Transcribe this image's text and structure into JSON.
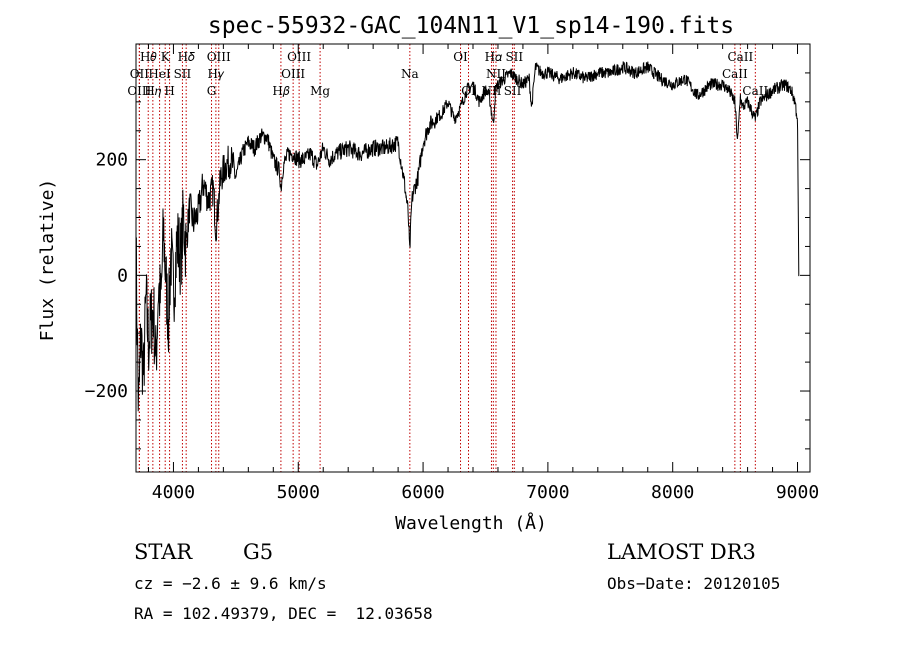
{
  "chart_data": {
    "type": "line",
    "title": "spec-55932-GAC_104N11_V1_sp14-190.fits",
    "xlabel": "Wavelength (Å)",
    "ylabel": "Flux (relative)",
    "xlim": [
      3700,
      9100
    ],
    "ylim": [
      -340,
      400
    ],
    "x_ticks": [
      4000,
      5000,
      6000,
      7000,
      8000,
      9000
    ],
    "y_ticks": [
      -200,
      0,
      200
    ],
    "series": [
      {
        "name": "flux",
        "x": [
          3700,
          3720,
          3740,
          3760,
          3780,
          3800,
          3820,
          3840,
          3860,
          3880,
          3900,
          3920,
          3940,
          3960,
          3980,
          4000,
          4030,
          4060,
          4080,
          4100,
          4130,
          4160,
          4200,
          4240,
          4280,
          4320,
          4340,
          4380,
          4420,
          4460,
          4500,
          4550,
          4600,
          4650,
          4700,
          4750,
          4800,
          4850,
          4861,
          4880,
          4920,
          4960,
          5000,
          5050,
          5100,
          5150,
          5200,
          5250,
          5300,
          5400,
          5500,
          5600,
          5700,
          5800,
          5850,
          5880,
          5893,
          5910,
          5930,
          5960,
          6000,
          6050,
          6100,
          6150,
          6200,
          6250,
          6300,
          6350,
          6400,
          6450,
          6500,
          6530,
          6563,
          6580,
          6600,
          6650,
          6700,
          6750,
          6800,
          6850,
          6870,
          6900,
          6950,
          7000,
          7100,
          7200,
          7300,
          7400,
          7500,
          7600,
          7700,
          7800,
          7900,
          8000,
          8100,
          8200,
          8300,
          8400,
          8450,
          8498,
          8520,
          8542,
          8560,
          8600,
          8662,
          8700,
          8800,
          8900,
          8950,
          8980,
          9000,
          9010
        ],
        "y": [
          50,
          -240,
          -100,
          -180,
          -40,
          -120,
          -80,
          -60,
          -150,
          -20,
          -50,
          80,
          -10,
          -80,
          40,
          -30,
          60,
          30,
          100,
          50,
          120,
          90,
          110,
          160,
          130,
          150,
          80,
          170,
          190,
          200,
          170,
          210,
          230,
          220,
          240,
          240,
          200,
          180,
          150,
          190,
          210,
          210,
          200,
          200,
          210,
          190,
          220,
          200,
          210,
          220,
          210,
          220,
          220,
          230,
          160,
          110,
          40,
          130,
          150,
          170,
          230,
          260,
          270,
          280,
          300,
          270,
          290,
          320,
          330,
          300,
          320,
          310,
          260,
          320,
          330,
          340,
          350,
          340,
          330,
          340,
          290,
          360,
          350,
          350,
          340,
          350,
          340,
          350,
          350,
          360,
          350,
          360,
          340,
          330,
          340,
          310,
          330,
          330,
          320,
          300,
          230,
          310,
          290,
          300,
          270,
          300,
          320,
          330,
          320,
          300,
          270,
          0
        ]
      }
    ],
    "lines": [
      {
        "name": "H𝜃",
        "wavelength": 3798
      },
      {
        "name": "OII",
        "wavelength": 3727
      },
      {
        "name": "OIII",
        "wavelength": 3727
      },
      {
        "name": "H𝜂",
        "wavelength": 3835
      },
      {
        "name": "HeI",
        "wavelength": 3889
      },
      {
        "name": "K",
        "wavelength": 3934
      },
      {
        "name": "H",
        "wavelength": 3969
      },
      {
        "name": "SII",
        "wavelength": 4072
      },
      {
        "name": "H𝛿",
        "wavelength": 4102
      },
      {
        "name": "H𝛾",
        "wavelength": 4340
      },
      {
        "name": "G",
        "wavelength": 4305
      },
      {
        "name": "OIII",
        "wavelength": 4363
      },
      {
        "name": "H𝛽",
        "wavelength": 4861
      },
      {
        "name": "OIII",
        "wavelength": 4959
      },
      {
        "name": "OIII",
        "wavelength": 5007
      },
      {
        "name": "Mg",
        "wavelength": 5175
      },
      {
        "name": "Na",
        "wavelength": 5894
      },
      {
        "name": "OI",
        "wavelength": 6300
      },
      {
        "name": "OI",
        "wavelength": 6364
      },
      {
        "name": "NII",
        "wavelength": 6548
      },
      {
        "name": "H𝛼",
        "wavelength": 6563
      },
      {
        "name": "NII",
        "wavelength": 6584
      },
      {
        "name": "SII",
        "wavelength": 6717
      },
      {
        "name": "SII",
        "wavelength": 6731
      },
      {
        "name": "CaII",
        "wavelength": 8498
      },
      {
        "name": "CaII",
        "wavelength": 8542
      },
      {
        "name": "CaII",
        "wavelength": 8662
      }
    ],
    "line_labels": [
      {
        "text": "H𝜃",
        "x": 3798
      },
      {
        "text": "K",
        "x": 3934
      },
      {
        "text": "H𝛿",
        "x": 4102
      },
      {
        "text": "OIII",
        "x": 4363
      },
      {
        "text": "OIII",
        "x": 5007
      },
      {
        "text": "OI",
        "x": 6300
      },
      {
        "text": "H𝛼",
        "x": 6563
      },
      {
        "text": "SII",
        "x": 6731
      },
      {
        "text": "CaII",
        "x": 8542
      },
      {
        "text": "OII",
        "x": 3727
      },
      {
        "text": "HeI",
        "x": 3889
      },
      {
        "text": "SII",
        "x": 4072
      },
      {
        "text": "H𝛾",
        "x": 4340
      },
      {
        "text": "OIII",
        "x": 4959
      },
      {
        "text": "Na",
        "x": 5894
      },
      {
        "text": "NII",
        "x": 6584
      },
      {
        "text": "CaII",
        "x": 8498
      },
      {
        "text": "OIII",
        "x": 3727
      },
      {
        "text": "H𝜂",
        "x": 3835
      },
      {
        "text": "H",
        "x": 3969
      },
      {
        "text": "G",
        "x": 4305
      },
      {
        "text": "H𝛽",
        "x": 4861
      },
      {
        "text": "Mg",
        "x": 5175
      },
      {
        "text": "OI",
        "x": 6364
      },
      {
        "text": "NII",
        "x": 6548
      },
      {
        "text": "SII",
        "x": 6717
      },
      {
        "text": "CaII",
        "x": 8662
      }
    ],
    "line_color": "#c00000",
    "grid": false
  },
  "info": {
    "class": "STAR",
    "subclass": "G5",
    "survey": "LAMOST DR3",
    "cz": "cz = −2.6 ± 9.6 km/s",
    "obs_date": "Obs−Date: 20120105",
    "coords": "RA = 102.49379, DEC =  12.03658"
  }
}
